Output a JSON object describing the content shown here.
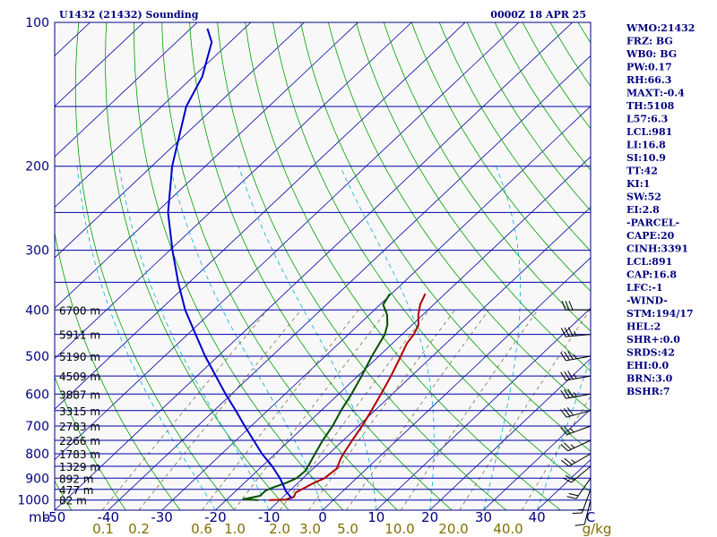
{
  "title_left": "U1432 (21432) Sounding",
  "title_right": "0000Z 18 APR 25",
  "colors": {
    "isobar": "#0000aa",
    "isotherm": "#0000aa",
    "dry_adiabat": "#00a000",
    "moist_adiabat": "#00b0d0",
    "mixing_ratio": "#807040",
    "temperature": "#b00000",
    "dewpoint": "#005000",
    "parcel": "#0000cc",
    "text": "#00007f"
  },
  "stats": [
    "WMO:21432",
    "FRZ: BG",
    "WB0: BG",
    "PW:0.17",
    "RH:66.3",
    "MAXT:-0.4",
    "TH:5108",
    "L57:6.3",
    "LCL:981",
    "LI:16.8",
    "SI:10.9",
    "TT:42",
    "KI:1",
    "SW:52",
    "EI:2.8",
    "-PARCEL-",
    "CAPE:20",
    "CINH:3391",
    "LCL:891",
    "CAP:16.8",
    "LFC:-1",
    "-WIND-",
    "STM:194/17",
    "HEL:2",
    "SHR+:0.0",
    "SRDS:42",
    "EHI:0.0",
    "BRN:3.0",
    "BSHR:7"
  ],
  "chart_data": {
    "type": "line",
    "title": "U1432 (21432) Sounding",
    "pressure_axis": {
      "label": "mb",
      "scale": "log",
      "range": [
        1050,
        100
      ],
      "ticks": [
        100,
        200,
        300,
        400,
        500,
        600,
        700,
        800,
        900,
        1000
      ]
    },
    "temperature_axis": {
      "label": "",
      "range": [
        -50,
        50
      ],
      "ticks": [
        "-50",
        "-40",
        "-30",
        "-20",
        "-10",
        "0",
        "10",
        "20",
        "30",
        "40",
        "C"
      ]
    },
    "mixing_ratio_labels": [
      "0.1",
      "0.2",
      "0.6",
      "1.0",
      "2.0",
      "3.0",
      "5.0",
      "10.0",
      "20.0",
      "40.0",
      "g/kg"
    ],
    "height_labels": [
      {
        "p": 400,
        "text": "6700 m"
      },
      {
        "p": 450,
        "text": "5911 m"
      },
      {
        "p": 500,
        "text": "5190 m"
      },
      {
        "p": 550,
        "text": "4509 m"
      },
      {
        "p": 600,
        "text": "3887 m"
      },
      {
        "p": 650,
        "text": "3315 m"
      },
      {
        "p": 700,
        "text": "2783 m"
      },
      {
        "p": 750,
        "text": "2266 m"
      },
      {
        "p": 800,
        "text": "1783 m"
      },
      {
        "p": 850,
        "text": "1329 m"
      },
      {
        "p": 900,
        "text": "892 m"
      },
      {
        "p": 950,
        "text": "477 m"
      },
      {
        "p": 1000,
        "text": "82 m"
      }
    ],
    "series": [
      {
        "name": "",
        "key": "temperature",
        "points": [
          [
            1000,
            -12
          ],
          [
            998,
            -9
          ],
          [
            985,
            -8
          ],
          [
            965,
            -8.5
          ],
          [
            950,
            -8
          ],
          [
            920,
            -7
          ],
          [
            900,
            -6
          ],
          [
            860,
            -5.6
          ],
          [
            820,
            -6.8
          ],
          [
            800,
            -7.3
          ],
          [
            750,
            -8.3
          ],
          [
            700,
            -9.3
          ],
          [
            650,
            -10.6
          ],
          [
            600,
            -12.1
          ],
          [
            550,
            -13.8
          ],
          [
            500,
            -15.9
          ],
          [
            470,
            -17.3
          ],
          [
            450,
            -17.8
          ],
          [
            430,
            -18.8
          ],
          [
            410,
            -20.8
          ],
          [
            390,
            -22.5
          ],
          [
            370,
            -23.7
          ]
        ]
      },
      {
        "name": "",
        "key": "dewpoint",
        "points": [
          [
            1000,
            -14
          ],
          [
            996,
            -17
          ],
          [
            980,
            -14.5
          ],
          [
            955,
            -14.5
          ],
          [
            940,
            -13.7
          ],
          [
            920,
            -12.2
          ],
          [
            900,
            -11.2
          ],
          [
            870,
            -11
          ],
          [
            850,
            -11.4
          ],
          [
            800,
            -12.6
          ],
          [
            750,
            -13.8
          ],
          [
            700,
            -14.8
          ],
          [
            650,
            -16.3
          ],
          [
            600,
            -17.6
          ],
          [
            550,
            -19.3
          ],
          [
            500,
            -21.3
          ],
          [
            450,
            -23.2
          ],
          [
            430,
            -24.6
          ],
          [
            410,
            -26.6
          ],
          [
            390,
            -29.4
          ],
          [
            370,
            -30.3
          ]
        ]
      },
      {
        "name": "",
        "key": "parcel",
        "points": [
          [
            993,
            -8
          ],
          [
            960,
            -10.5
          ],
          [
            900,
            -14.3
          ],
          [
            850,
            -18.1
          ],
          [
            800,
            -22.5
          ],
          [
            750,
            -26.7
          ],
          [
            700,
            -31.2
          ],
          [
            650,
            -35.9
          ],
          [
            600,
            -41.1
          ],
          [
            550,
            -46.5
          ],
          [
            500,
            -52.4
          ],
          [
            450,
            -58.5
          ],
          [
            400,
            -65.3
          ],
          [
            350,
            -72.1
          ],
          [
            300,
            -79.5
          ],
          [
            250,
            -87.8
          ],
          [
            200,
            -96.2
          ],
          [
            150,
            -105.4
          ],
          [
            130,
            -108.3
          ],
          [
            110,
            -113.4
          ],
          [
            103,
            -116.9
          ]
        ]
      }
    ],
    "wind_barbs": [
      {
        "p": 1000,
        "dir": 194,
        "spd": 10
      },
      {
        "p": 950,
        "dir": 200,
        "spd": 15
      },
      {
        "p": 900,
        "dir": 215,
        "spd": 20
      },
      {
        "p": 850,
        "dir": 230,
        "spd": 20
      },
      {
        "p": 800,
        "dir": 240,
        "spd": 25
      },
      {
        "p": 750,
        "dir": 245,
        "spd": 25
      },
      {
        "p": 700,
        "dir": 250,
        "spd": 25
      },
      {
        "p": 650,
        "dir": 255,
        "spd": 30
      },
      {
        "p": 600,
        "dir": 260,
        "spd": 35
      },
      {
        "p": 550,
        "dir": 260,
        "spd": 35
      },
      {
        "p": 500,
        "dir": 260,
        "spd": 35
      },
      {
        "p": 450,
        "dir": 265,
        "spd": 35
      },
      {
        "p": 400,
        "dir": 270,
        "spd": 30
      }
    ]
  }
}
